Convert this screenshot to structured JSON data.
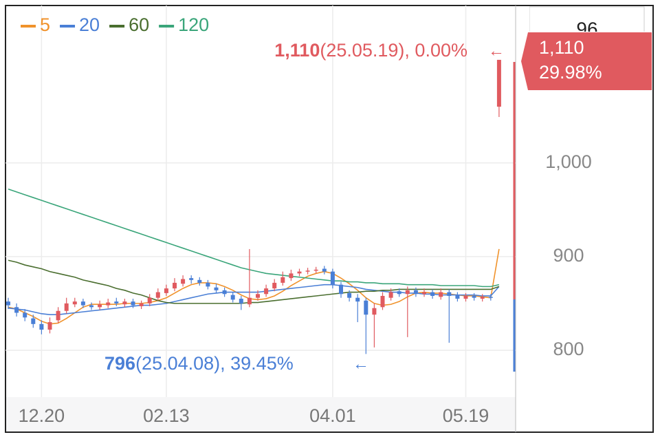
{
  "chart_data": {
    "type": "candlestick",
    "categories": [
      null,
      null,
      null,
      null,
      "12.20",
      null,
      null,
      null,
      null,
      null,
      null,
      null,
      null,
      null,
      null,
      null,
      null,
      null,
      null,
      "02.13",
      null,
      null,
      null,
      null,
      null,
      null,
      null,
      null,
      null,
      null,
      null,
      null,
      null,
      null,
      null,
      null,
      null,
      null,
      null,
      "04.01",
      null,
      null,
      null,
      null,
      null,
      null,
      null,
      null,
      null,
      null,
      null,
      null,
      null,
      null,
      null,
      "05.19",
      null,
      null,
      null,
      null
    ],
    "open": [
      852,
      846,
      840,
      834,
      828,
      822,
      832,
      842,
      849,
      852,
      848,
      846,
      848,
      852,
      849,
      852,
      847,
      850,
      856,
      861,
      866,
      871,
      877,
      875,
      872,
      867,
      864,
      859,
      855,
      849,
      856,
      860,
      866,
      872,
      877,
      882,
      884,
      885,
      887,
      884,
      870,
      861,
      856,
      853,
      838,
      846,
      856,
      863,
      860,
      864,
      860,
      862,
      857,
      862,
      859,
      855,
      858,
      855,
      857,
      1060
    ],
    "high": [
      856,
      850,
      844,
      838,
      832,
      835,
      846,
      856,
      856,
      855,
      851,
      853,
      855,
      856,
      855,
      855,
      853,
      860,
      866,
      870,
      877,
      880,
      880,
      878,
      875,
      871,
      867,
      862,
      858,
      908,
      864,
      870,
      876,
      884,
      886,
      887,
      888,
      889,
      890,
      887,
      873,
      864,
      860,
      856,
      850,
      862,
      866,
      866,
      868,
      867,
      866,
      865,
      866,
      865,
      862,
      861,
      861,
      860,
      860,
      1110
    ],
    "low": [
      844,
      836,
      831,
      824,
      817,
      818,
      829,
      839,
      846,
      845,
      843,
      843,
      845,
      847,
      846,
      845,
      844,
      847,
      853,
      858,
      863,
      868,
      871,
      869,
      865,
      861,
      857,
      851,
      843,
      846,
      853,
      857,
      863,
      869,
      874,
      879,
      881,
      882,
      881,
      866,
      856,
      852,
      830,
      796,
      803,
      843,
      853,
      857,
      814,
      857,
      857,
      855,
      854,
      808,
      852,
      852,
      853,
      852,
      853,
      1049
    ],
    "close": [
      848,
      840,
      835,
      828,
      822,
      830,
      842,
      850,
      852,
      848,
      846,
      849,
      851,
      850,
      852,
      848,
      850,
      856,
      862,
      866,
      872,
      876,
      875,
      872,
      868,
      864,
      860,
      854,
      850,
      856,
      860,
      866,
      872,
      878,
      882,
      884,
      885,
      886,
      884,
      870,
      860,
      856,
      852,
      838,
      845,
      858,
      862,
      860,
      864,
      860,
      862,
      858,
      862,
      858,
      855,
      858,
      856,
      857,
      856,
      1110
    ],
    "up_color": "#e05a5f",
    "down_color": "#4a7fd6",
    "series": [
      {
        "name": "5",
        "color": "#f0922b",
        "values": [
          846,
          844,
          840,
          836,
          831,
          828,
          829,
          834,
          840,
          846,
          849,
          849,
          849,
          849,
          850,
          850,
          850,
          851,
          853,
          856,
          861,
          866,
          870,
          872,
          872,
          871,
          868,
          864,
          859,
          855,
          854,
          855,
          858,
          863,
          869,
          874,
          879,
          882,
          884,
          882,
          877,
          871,
          864,
          856,
          850,
          848,
          849,
          852,
          857,
          861,
          862,
          861,
          861,
          860,
          859,
          858,
          858,
          857,
          856,
          908
        ]
      },
      {
        "name": "20",
        "color": "#4a7fd6",
        "values": [
          845,
          844,
          843,
          841,
          839,
          838,
          838,
          839,
          840,
          841,
          842,
          843,
          844,
          845,
          846,
          847,
          848,
          848,
          849,
          850,
          852,
          854,
          856,
          858,
          860,
          861,
          862,
          862,
          862,
          862,
          862,
          863,
          864,
          865,
          866,
          867,
          868,
          869,
          870,
          870,
          869,
          868,
          867,
          865,
          864,
          863,
          862,
          862,
          861,
          861,
          860,
          860,
          859,
          859,
          859,
          859,
          859,
          858,
          858,
          868
        ]
      },
      {
        "name": "60",
        "color": "#4a6e2f",
        "values": [
          896,
          894,
          891,
          889,
          887,
          884,
          882,
          880,
          878,
          875,
          873,
          871,
          869,
          866,
          864,
          861,
          859,
          856,
          853,
          851,
          850,
          850,
          850,
          850,
          850,
          850,
          850,
          850,
          850,
          851,
          851,
          852,
          853,
          854,
          855,
          856,
          857,
          858,
          859,
          860,
          861,
          862,
          862,
          863,
          863,
          864,
          864,
          865,
          865,
          865,
          865,
          865,
          865,
          865,
          865,
          865,
          865,
          865,
          865,
          868
        ]
      },
      {
        "name": "120",
        "color": "#3aa57a",
        "values": [
          972,
          969,
          966,
          963,
          960,
          957,
          954,
          951,
          948,
          945,
          942,
          939,
          936,
          933,
          930,
          927,
          924,
          921,
          918,
          915,
          912,
          909,
          906,
          903,
          900,
          897,
          894,
          891,
          888,
          886,
          884,
          882,
          881,
          880,
          879,
          878,
          877,
          876,
          875,
          874,
          874,
          873,
          873,
          872,
          872,
          871,
          871,
          871,
          870,
          870,
          870,
          870,
          869,
          869,
          869,
          869,
          869,
          868,
          868,
          870
        ]
      }
    ],
    "ylim": [
      750,
      1168
    ],
    "yticks": [
      800,
      900,
      {
        "value": 1000,
        "label": "1,000"
      }
    ],
    "grid": true,
    "high_note": {
      "value": "1,110",
      "rest": "(25.05.19), 0.00%"
    },
    "low_note": {
      "value": "796",
      "rest": "(25.04.08), 39.45%"
    },
    "price_tag": {
      "price": "1,110",
      "change": "29.98%"
    },
    "volume_box": "96"
  }
}
